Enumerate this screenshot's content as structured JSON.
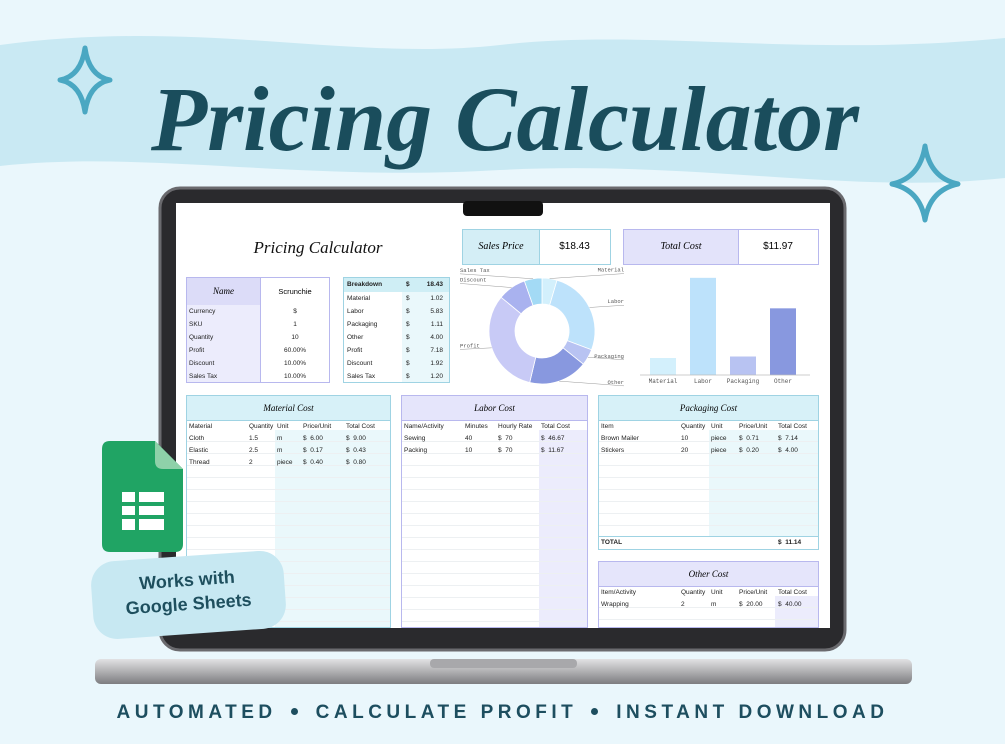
{
  "header": {
    "title": "Pricing Calculator"
  },
  "sheet": {
    "title": "Pricing Calculator",
    "sales_price": {
      "label": "Sales Price",
      "value": "$18.43"
    },
    "total_cost": {
      "label": "Total Cost",
      "value": "$11.97"
    },
    "info": {
      "name_label": "Name",
      "name_value": "Scrunchie",
      "rows": [
        [
          "Currency",
          "$"
        ],
        [
          "SKU",
          "1"
        ],
        [
          "Quantity",
          "10"
        ],
        [
          "Profit",
          "60.00%"
        ],
        [
          "Discount",
          "10.00%"
        ],
        [
          "Sales Tax",
          "10.00%"
        ]
      ]
    },
    "breakdown": {
      "header": [
        "Breakdown",
        "$",
        "18.43"
      ],
      "rows": [
        [
          "Material",
          "$",
          "1.02"
        ],
        [
          "Labor",
          "$",
          "5.83"
        ],
        [
          "Packaging",
          "$",
          "1.11"
        ],
        [
          "Other",
          "$",
          "4.00"
        ],
        [
          "Profit",
          "$",
          "7.18"
        ],
        [
          "Discount",
          "$",
          "1.92"
        ],
        [
          "Sales Tax",
          "$",
          "1.20"
        ]
      ]
    },
    "material_cost": {
      "title": "Material Cost",
      "columns": [
        "Material",
        "Quantity",
        "Unit",
        "Price/Unit",
        "Total Cost"
      ],
      "rows": [
        [
          "Cloth",
          "1.5",
          "m",
          "$  6.00",
          "$  9.00"
        ],
        [
          "Elastic",
          "2.5",
          "m",
          "$  0.17",
          "$  0.43"
        ],
        [
          "Thread",
          "2",
          "piece",
          "$  0.40",
          "$  0.80"
        ]
      ]
    },
    "labor_cost": {
      "title": "Labor Cost",
      "columns": [
        "Name/Activity",
        "Minutes",
        "Hourly Rate",
        "Total Cost"
      ],
      "rows": [
        [
          "Sewing",
          "40",
          "$  70",
          "$  46.67"
        ],
        [
          "Packing",
          "10",
          "$  70",
          "$  11.67"
        ]
      ]
    },
    "packaging_cost": {
      "title": "Packaging Cost",
      "columns": [
        "Item",
        "Quantity",
        "Unit",
        "Price/Unit",
        "Total Cost"
      ],
      "rows": [
        [
          "Brown Mailer",
          "10",
          "piece",
          "$  0.71",
          "$  7.14"
        ],
        [
          "Stickers",
          "20",
          "piece",
          "$  0.20",
          "$  4.00"
        ]
      ],
      "total": [
        "TOTAL",
        "$  11.14"
      ]
    },
    "other_cost": {
      "title": "Other Cost",
      "columns": [
        "Item/Activity",
        "Quantity",
        "Unit",
        "Price/Unit",
        "Total Cost"
      ],
      "rows": [
        [
          "Wrapping",
          "2",
          "m",
          "$  20.00",
          "$  40.00"
        ]
      ]
    }
  },
  "chart_data": [
    {
      "type": "pie",
      "categories": [
        "Material",
        "Labor",
        "Packaging",
        "Other",
        "Profit",
        "Discount",
        "Sales Tax"
      ],
      "values": [
        1.02,
        5.83,
        1.11,
        4.0,
        7.18,
        1.92,
        1.2
      ],
      "colors": [
        "#d3f0fc",
        "#bde2fb",
        "#b8c3f2",
        "#8898df",
        "#c8caf6",
        "#a9b2ef",
        "#a3daf5"
      ]
    },
    {
      "type": "bar",
      "categories": [
        "Material",
        "Labor",
        "Packaging",
        "Other"
      ],
      "values": [
        1.02,
        5.83,
        1.11,
        4.0
      ],
      "colors": [
        "#d3f0fc",
        "#bde2fb",
        "#b8c3f2",
        "#8898df"
      ],
      "ylim": [
        0,
        6
      ]
    }
  ],
  "badge": {
    "lines": [
      "Works with",
      "Google Sheets"
    ]
  },
  "footer": {
    "items": [
      "AUTOMATED",
      "CALCULATE PROFIT",
      "INSTANT DOWNLOAD"
    ]
  }
}
